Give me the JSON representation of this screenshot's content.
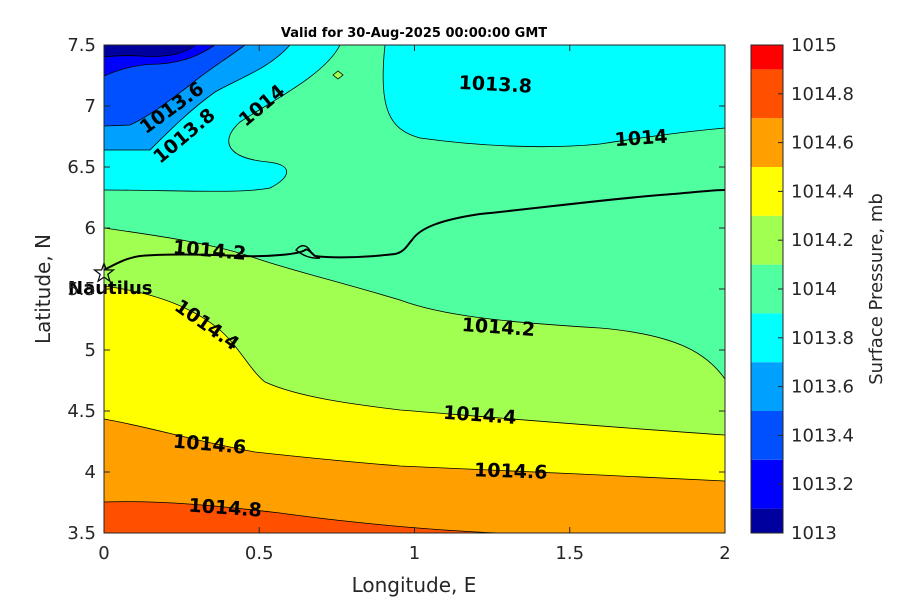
{
  "chart_data": {
    "type": "contour",
    "title": "Valid for 30-Aug-2025 00:00:00 GMT",
    "xlabel": "Longitude, E",
    "ylabel": "Latitude, N",
    "xlim": [
      0,
      2
    ],
    "ylim": [
      3.5,
      7.5
    ],
    "xticks": [
      "0",
      "0.5",
      "1",
      "1.5",
      "2"
    ],
    "yticks": [
      "3.5",
      "4",
      "4.5",
      "5",
      "5.5",
      "6",
      "6.5",
      "7",
      "7.5"
    ],
    "colorbar": {
      "label": "Surface Pressure, mb",
      "levels": [
        1013,
        1013.2,
        1013.4,
        1013.6,
        1013.8,
        1014,
        1014.2,
        1014.4,
        1014.6,
        1014.8,
        1015
      ],
      "tick_labels": [
        "1013",
        "1013.2",
        "1013.4",
        "1013.6",
        "1013.8",
        "1014",
        "1014.2",
        "1014.4",
        "1014.6",
        "1014.8",
        "1015"
      ],
      "colors": [
        "#00009f",
        "#0000ff",
        "#0050ff",
        "#00a0ff",
        "#00ffff",
        "#50ffa0",
        "#a0ff50",
        "#ffff00",
        "#ffa000",
        "#ff5000",
        "#ff0000"
      ]
    },
    "contour_labels": [
      {
        "text": "1013.6",
        "lon": 0.22,
        "lat": 6.98
      },
      {
        "text": "1013.8",
        "lon": 0.26,
        "lat": 6.75
      },
      {
        "text": "1014",
        "lon": 0.51,
        "lat": 7.0
      },
      {
        "text": "1013.8",
        "lon": 1.26,
        "lat": 7.17
      },
      {
        "text": "1014",
        "lon": 1.73,
        "lat": 6.73
      },
      {
        "text": "1014.2",
        "lon": 0.34,
        "lat": 5.81
      },
      {
        "text": "1014.2",
        "lon": 1.27,
        "lat": 5.18
      },
      {
        "text": "1014.4",
        "lon": 0.33,
        "lat": 5.2
      },
      {
        "text": "1014.4",
        "lon": 1.21,
        "lat": 4.46
      },
      {
        "text": "1014.6",
        "lon": 0.34,
        "lat": 4.22
      },
      {
        "text": "1014.6",
        "lon": 1.31,
        "lat": 4.0
      },
      {
        "text": "1014.8",
        "lon": 0.39,
        "lat": 3.7
      }
    ],
    "marker": {
      "label": "Nautilus",
      "lon": 0.0,
      "lat": 5.63
    }
  }
}
